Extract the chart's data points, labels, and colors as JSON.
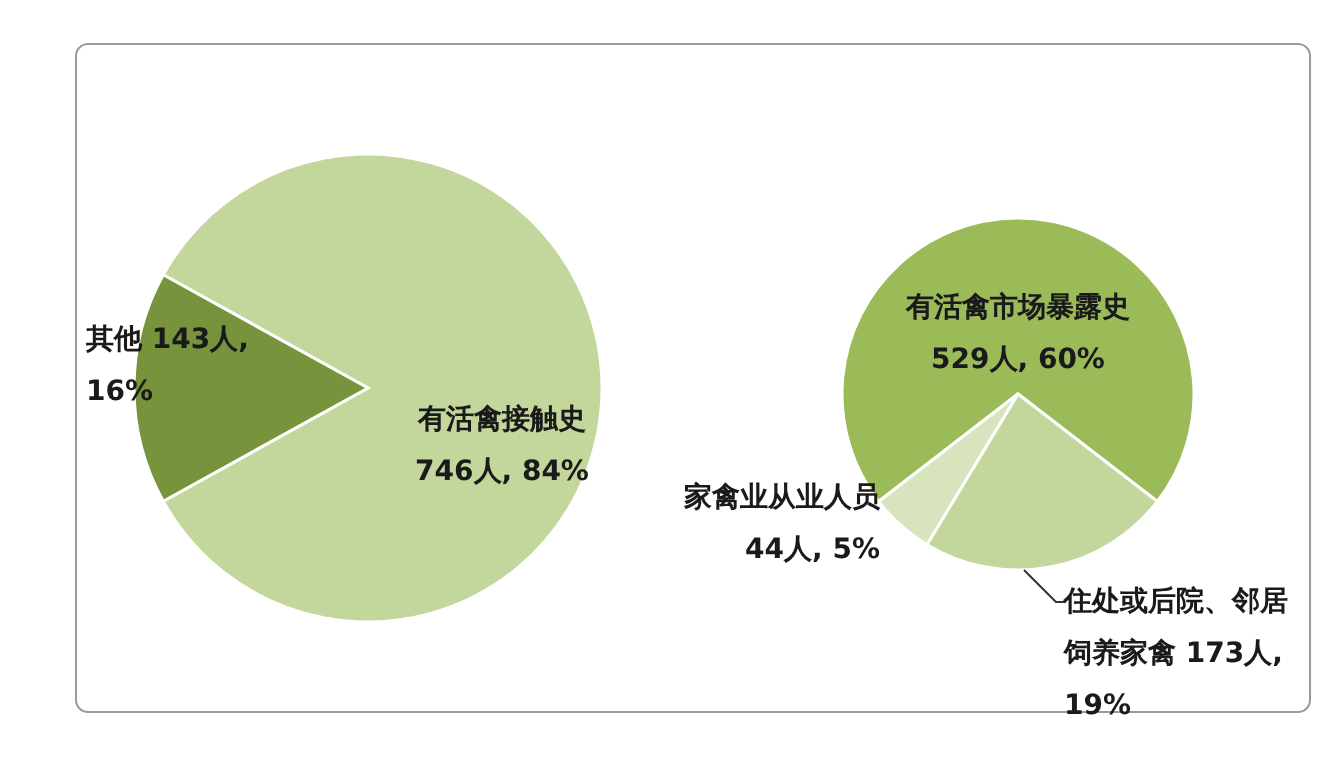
{
  "chart_data": [
    {
      "type": "pie",
      "categories": [
        "有活禽接触史",
        "其他"
      ],
      "values": [
        746,
        143
      ],
      "colors": [
        "#c3d69b",
        "#77933c"
      ],
      "value_labels": [
        "746人, 84%",
        "143人, 16%"
      ]
    },
    {
      "type": "pie",
      "categories": [
        "有活禽市场暴露史",
        "家禽业从业人员",
        "住处或后院、邻居饲养家禽"
      ],
      "values": [
        529,
        44,
        173
      ],
      "colors": [
        "#9bbb59",
        "#d7e4bd",
        "#c3d69b"
      ],
      "value_labels": [
        "529人, 60%",
        "44人, 5%",
        "173人, 19%"
      ]
    }
  ]
}
